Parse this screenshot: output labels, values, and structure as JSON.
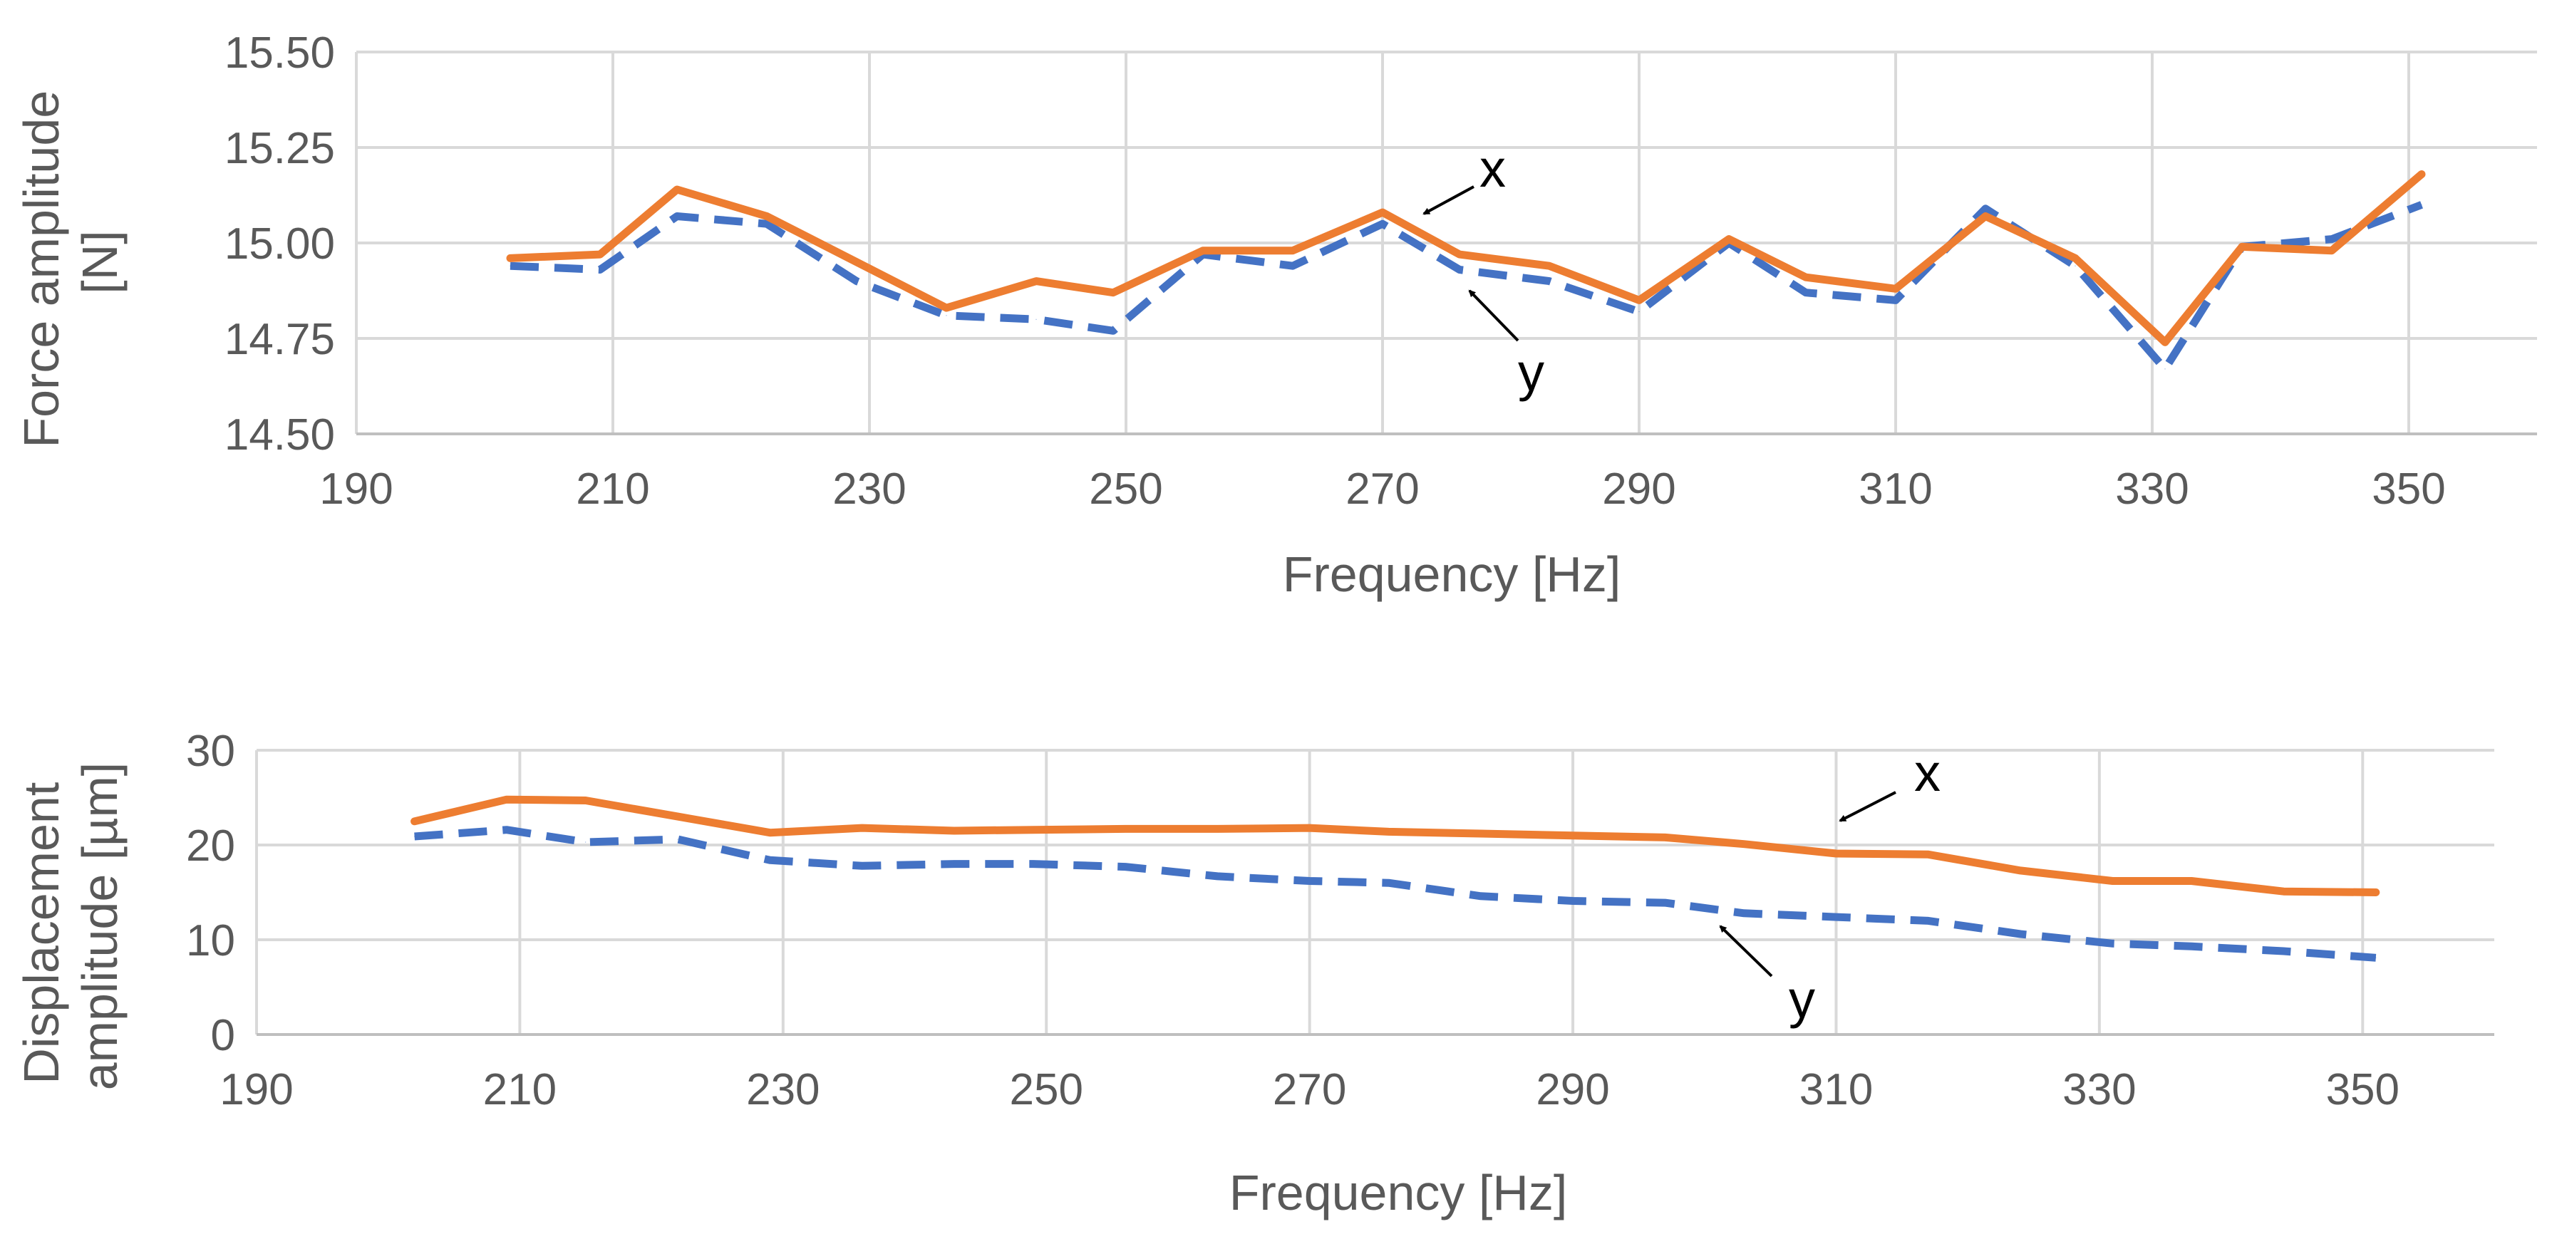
{
  "chart_data": [
    {
      "type": "line",
      "xlabel": "Frequency [Hz]",
      "ylabel": "Force amplitude [N]",
      "ylabel_lines": [
        "Force amplitude",
        "[N]"
      ],
      "xlim": [
        190,
        360
      ],
      "ylim": [
        14.5,
        15.5
      ],
      "xticks": [
        "190",
        "210",
        "230",
        "250",
        "270",
        "290",
        "310",
        "330",
        "350"
      ],
      "yticks": [
        "14.50",
        "14.75",
        "15.00",
        "15.25",
        "15.50"
      ],
      "grid": true,
      "x": [
        202,
        209,
        215,
        222,
        229,
        236,
        243,
        249,
        256,
        263,
        270,
        276,
        283,
        290,
        297,
        303,
        310,
        317,
        324,
        331,
        337,
        344,
        351
      ],
      "series": [
        {
          "name": "x",
          "color": "#ED7D31",
          "style": "solid",
          "values": [
            14.96,
            14.97,
            15.14,
            15.07,
            14.95,
            14.83,
            14.9,
            14.87,
            14.98,
            14.98,
            15.08,
            14.97,
            14.94,
            14.85,
            15.01,
            14.91,
            14.88,
            15.07,
            14.96,
            14.74,
            14.99,
            14.98,
            15.18
          ]
        },
        {
          "name": "y",
          "color": "#4472C4",
          "style": "dashed",
          "values": [
            14.94,
            14.93,
            15.07,
            15.05,
            14.9,
            14.81,
            14.8,
            14.77,
            14.97,
            14.94,
            15.05,
            14.93,
            14.9,
            14.82,
            15.0,
            14.87,
            14.85,
            15.09,
            14.94,
            14.67,
            14.99,
            15.01,
            15.1
          ]
        }
      ],
      "annotations": [
        {
          "text": "x",
          "series": "x"
        },
        {
          "text": "y",
          "series": "y"
        }
      ]
    },
    {
      "type": "line",
      "xlabel": "Frequency [Hz]",
      "ylabel": "Displacement amplitude [µm]",
      "ylabel_lines": [
        "Displacement",
        "amplitude [µm]"
      ],
      "xlim": [
        190,
        360
      ],
      "ylim": [
        0,
        30
      ],
      "xticks": [
        "190",
        "210",
        "230",
        "250",
        "270",
        "290",
        "310",
        "330",
        "350"
      ],
      "yticks": [
        "0",
        "10",
        "20",
        "30"
      ],
      "grid": true,
      "x": [
        202,
        209,
        215,
        222,
        229,
        236,
        243,
        249,
        256,
        263,
        270,
        276,
        283,
        290,
        297,
        303,
        310,
        317,
        324,
        331,
        337,
        344,
        351
      ],
      "series": [
        {
          "name": "x",
          "color": "#ED7D31",
          "style": "solid",
          "values": [
            22.5,
            24.8,
            24.7,
            23.0,
            21.3,
            21.8,
            21.5,
            21.6,
            21.7,
            21.7,
            21.8,
            21.4,
            21.2,
            21.0,
            20.8,
            20.1,
            19.1,
            19.0,
            17.3,
            16.2,
            16.2,
            15.1,
            15.0
          ]
        },
        {
          "name": "y",
          "color": "#4472C4",
          "style": "dashed",
          "values": [
            20.9,
            21.6,
            20.3,
            20.6,
            18.4,
            17.8,
            18.0,
            18.0,
            17.7,
            16.7,
            16.2,
            16.0,
            14.6,
            14.1,
            13.9,
            12.8,
            12.4,
            12.0,
            10.6,
            9.6,
            9.3,
            8.8,
            8.1
          ]
        }
      ],
      "annotations": [
        {
          "text": "x",
          "series": "x"
        },
        {
          "text": "y",
          "series": "y"
        }
      ]
    }
  ]
}
